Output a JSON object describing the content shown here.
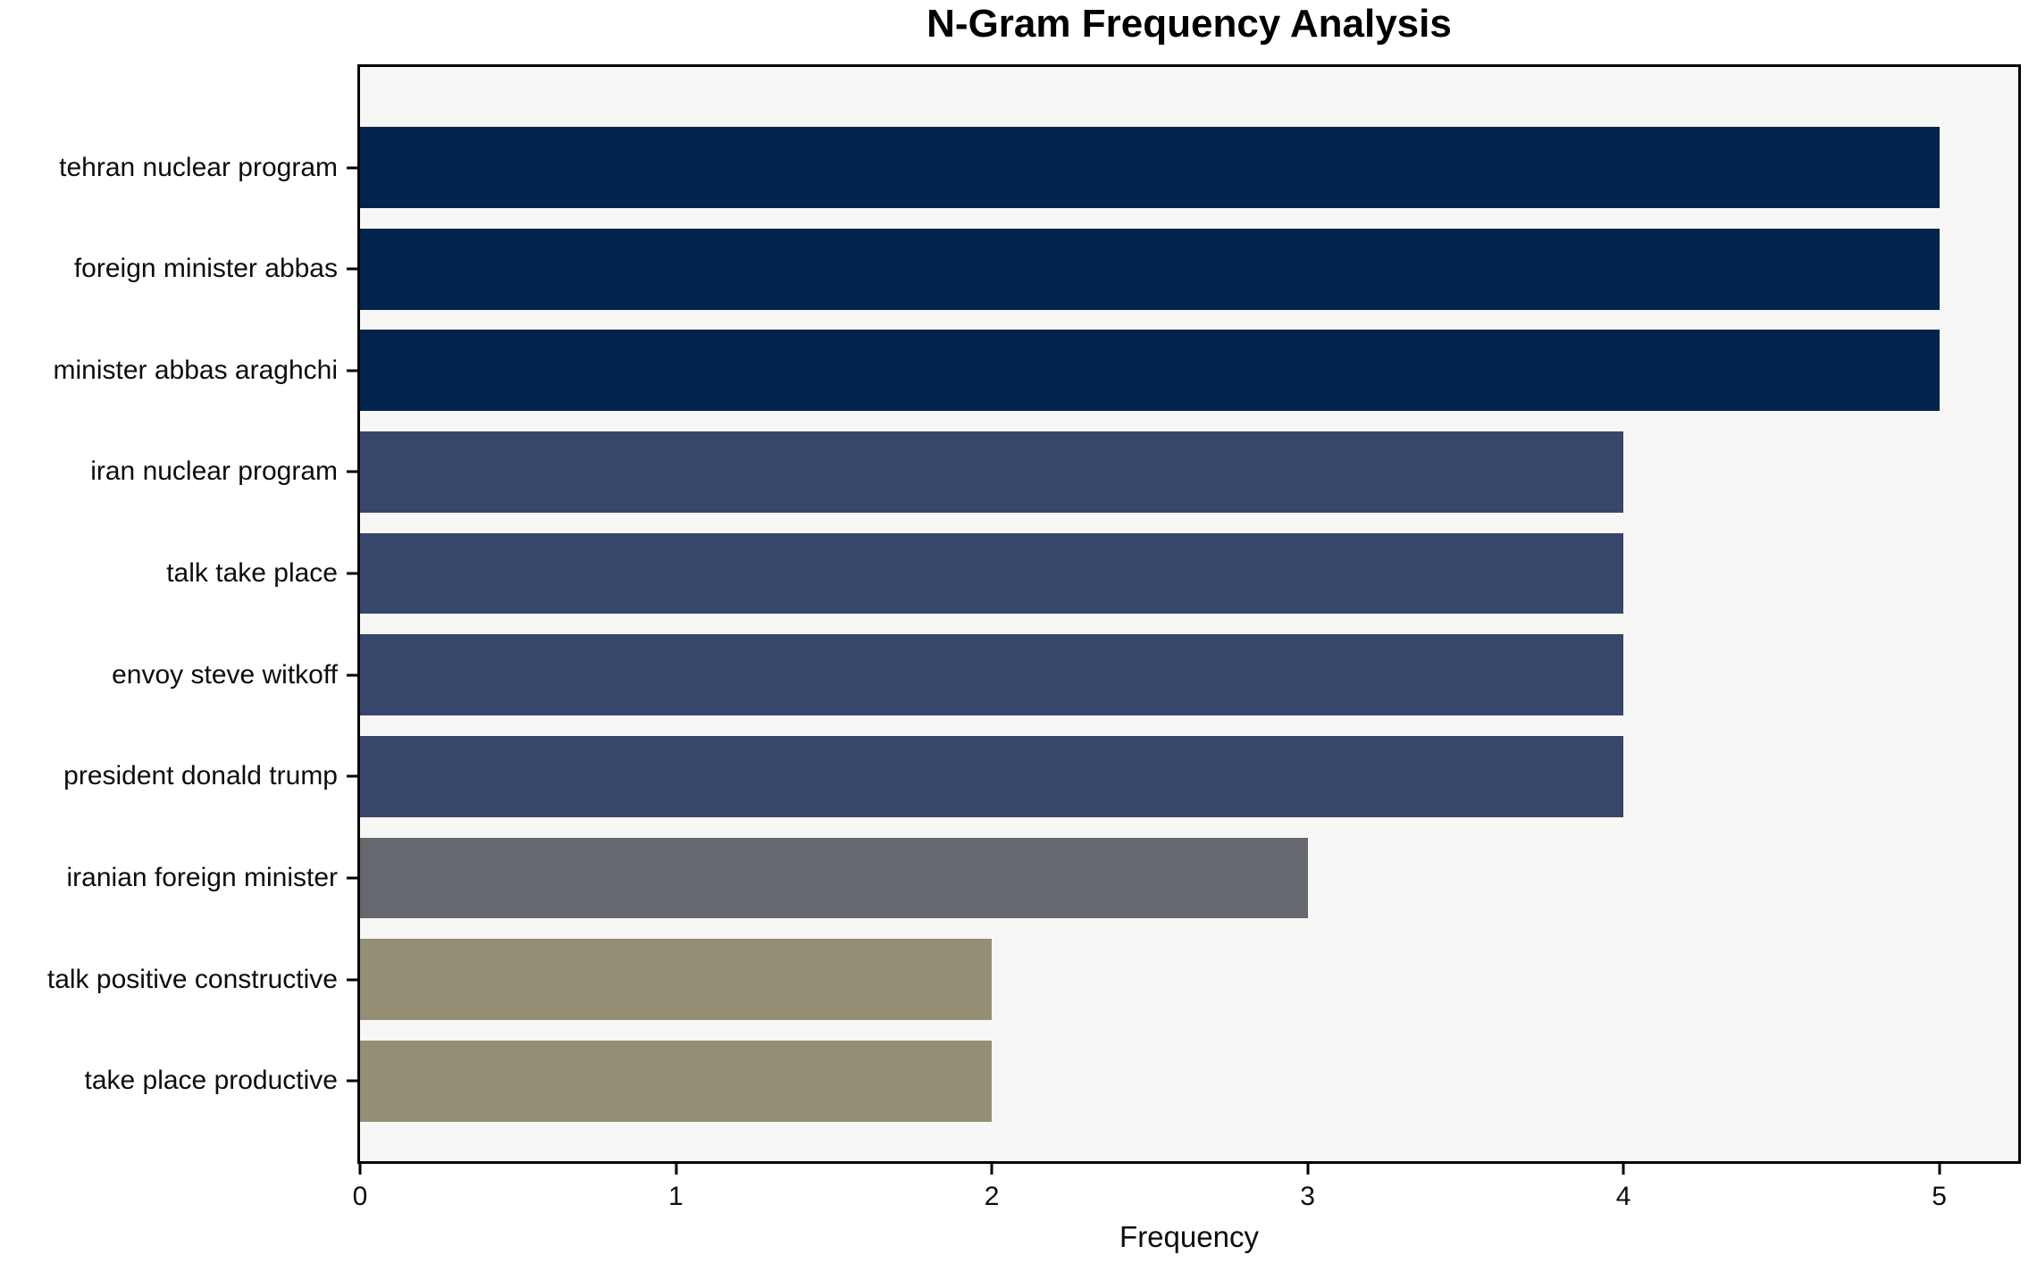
{
  "chart_data": {
    "type": "bar",
    "orientation": "horizontal",
    "title": "N-Gram Frequency Analysis",
    "xlabel": "Frequency",
    "ylabel": "",
    "categories": [
      "tehran nuclear program",
      "foreign minister abbas",
      "minister abbas araghchi",
      "iran nuclear program",
      "talk take place",
      "envoy steve witkoff",
      "president donald trump",
      "iranian foreign minister",
      "talk positive constructive",
      "take place productive"
    ],
    "values": [
      5,
      5,
      5,
      4,
      4,
      4,
      4,
      3,
      2,
      2
    ],
    "bar_colors": [
      "#02234c",
      "#02234c",
      "#02234c",
      "#37466b",
      "#37466b",
      "#37466b",
      "#37466b",
      "#66686f",
      "#948e74",
      "#948e74"
    ],
    "xticks": [
      0,
      1,
      2,
      3,
      4,
      5
    ],
    "xlim": [
      0,
      5.25
    ],
    "grid": false,
    "legend": null,
    "bar_height_fraction": 0.8,
    "colors": {
      "plot_background": "#f7f7f5",
      "figure_background": "#ffffff",
      "axis": "#000000",
      "text": "#0d0d0d"
    }
  }
}
